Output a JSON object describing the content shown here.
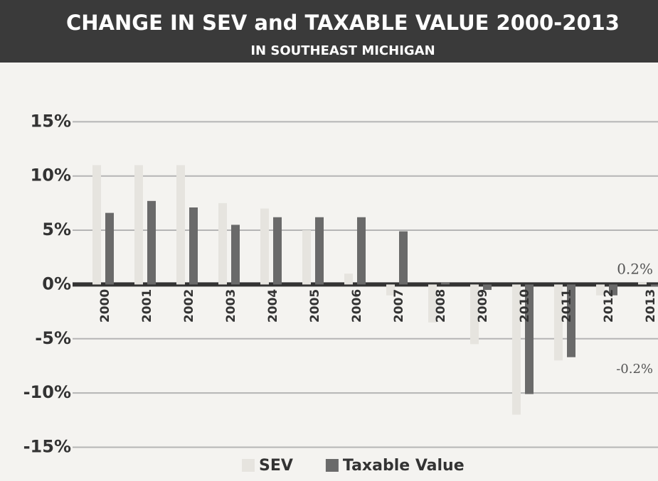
{
  "chart_data": {
    "type": "bar",
    "title": "CHANGE IN SEV and TAXABLE VALUE 2000-2013",
    "subtitle": "IN SOUTHEAST MICHIGAN",
    "categories": [
      "2000",
      "2001",
      "2002",
      "2003",
      "2004",
      "2005",
      "2006",
      "2007",
      "2008",
      "2009",
      "2010",
      "2011",
      "2012",
      "2013"
    ],
    "series": [
      {
        "name": "SEV",
        "color": "#e6e4df",
        "values": [
          11,
          11,
          11,
          7.5,
          7,
          5,
          1,
          -1,
          -3.5,
          -5.5,
          -12,
          -7,
          -1,
          0.2
        ]
      },
      {
        "name": "Taxable Value",
        "color": "#6a6a6a",
        "values": [
          6.6,
          7.7,
          7.1,
          5.5,
          6.2,
          6.2,
          6.2,
          4.9,
          0.2,
          -0.5,
          -10.1,
          -6.7,
          -1,
          -0.2
        ]
      }
    ],
    "annotations": [
      "0.2%",
      "-0.2%"
    ],
    "ylim": [
      -17,
      20
    ],
    "yticks": [
      {
        "value": -15,
        "label": "-15%"
      },
      {
        "value": -10,
        "label": "-10%"
      },
      {
        "value": -5,
        "label": "-5%"
      },
      {
        "value": 0,
        "label": "0%"
      },
      {
        "value": 5,
        "label": "5%"
      },
      {
        "value": 10,
        "label": "10%"
      },
      {
        "value": 15,
        "label": "15%"
      }
    ],
    "grid": true
  }
}
